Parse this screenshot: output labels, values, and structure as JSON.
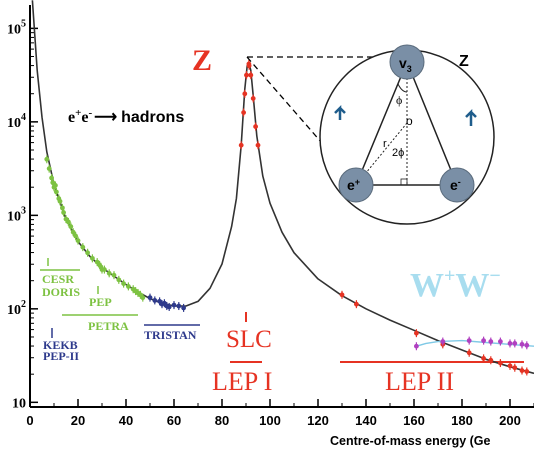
{
  "chart_data": {
    "type": "line",
    "xlabel": "Centre-of-mass energy (Ge",
    "x_ticks": [
      "0",
      "20",
      "40",
      "60",
      "80",
      "100",
      "120",
      "140",
      "160",
      "180",
      "200"
    ],
    "y_ticks": [
      "10",
      "10",
      "10",
      "10",
      "10"
    ],
    "y_tick_exponents": [
      "",
      "2",
      "3",
      "4",
      "5"
    ],
    "y_tick_values": [
      10,
      100,
      1000,
      10000,
      100000
    ],
    "xlim": [
      0,
      210
    ],
    "ylim_log10": [
      0.95,
      5.25
    ],
    "process_label": {
      "base1": "e",
      "sup1": "+",
      "base2": "e",
      "sup2": "-",
      "arrow": "⟶",
      "text": "hadrons"
    },
    "z_label": "Z",
    "ww_label": {
      "base1": "W",
      "sup1": "+",
      "base2": "W",
      "sup2": "−"
    },
    "theory_curve": {
      "color": "#333333",
      "points": [
        [
          1.0,
          5.3
        ],
        [
          3.0,
          4.55
        ],
        [
          5.0,
          4.05
        ],
        [
          7.0,
          3.68
        ],
        [
          10.0,
          3.33
        ],
        [
          15.0,
          2.96
        ],
        [
          20.0,
          2.72
        ],
        [
          25.0,
          2.56
        ],
        [
          30.0,
          2.44
        ],
        [
          35.0,
          2.35
        ],
        [
          40.0,
          2.26
        ],
        [
          45.0,
          2.18
        ],
        [
          50.0,
          2.11
        ],
        [
          55.0,
          2.06
        ],
        [
          60.0,
          2.03
        ],
        [
          65.0,
          2.03
        ],
        [
          70.0,
          2.08
        ],
        [
          75.0,
          2.22
        ],
        [
          80.0,
          2.48
        ],
        [
          84.0,
          2.88
        ],
        [
          86.0,
          3.18
        ],
        [
          88.0,
          3.75
        ],
        [
          89.5,
          4.35
        ],
        [
          90.5,
          4.6
        ],
        [
          91.2,
          4.63
        ],
        [
          92.0,
          4.55
        ],
        [
          93.0,
          4.28
        ],
        [
          94.5,
          3.85
        ],
        [
          97.0,
          3.42
        ],
        [
          100.0,
          3.13
        ],
        [
          105.0,
          2.82
        ],
        [
          110.0,
          2.6
        ],
        [
          120.0,
          2.32
        ],
        [
          130.0,
          2.14
        ],
        [
          140.0,
          2.0
        ],
        [
          150.0,
          1.88
        ],
        [
          160.0,
          1.77
        ],
        [
          170.0,
          1.66
        ],
        [
          180.0,
          1.56
        ],
        [
          190.0,
          1.46
        ],
        [
          200.0,
          1.38
        ],
        [
          210.0,
          1.31
        ]
      ]
    },
    "ww_curve": {
      "color": "#7FC9E6",
      "points": [
        [
          161.0,
          1.6
        ],
        [
          165.0,
          1.63
        ],
        [
          170.0,
          1.65
        ],
        [
          180.0,
          1.66
        ],
        [
          190.0,
          1.64
        ],
        [
          200.0,
          1.62
        ],
        [
          210.0,
          1.6
        ]
      ]
    },
    "series": [
      {
        "name": "CESR",
        "color": "#7DC242",
        "points": [
          [
            7.0,
            3.6
          ],
          [
            8.0,
            3.5
          ],
          [
            9.0,
            3.4
          ],
          [
            9.5,
            3.35
          ],
          [
            10.0,
            3.3
          ],
          [
            10.6,
            3.32
          ],
          [
            11.0,
            3.25
          ],
          [
            12.0,
            3.18
          ]
        ]
      },
      {
        "name": "DORIS",
        "color": "#7DC242",
        "points": [
          [
            12.5,
            3.15
          ],
          [
            13.5,
            3.08
          ],
          [
            14.0,
            3.03
          ],
          [
            15.0,
            2.96
          ],
          [
            16.0,
            2.93
          ],
          [
            17.0,
            2.88
          ],
          [
            18.0,
            2.82
          ]
        ]
      },
      {
        "name": "PEP",
        "color": "#7DC242",
        "points": [
          [
            29.0,
            2.47
          ],
          [
            29.5,
            2.45
          ],
          [
            30.0,
            2.42
          ]
        ]
      },
      {
        "name": "PETRA",
        "color": "#7DC242",
        "points": [
          [
            19.0,
            2.78
          ],
          [
            20.0,
            2.73
          ],
          [
            22.0,
            2.66
          ],
          [
            24.0,
            2.6
          ],
          [
            26.0,
            2.54
          ],
          [
            28.0,
            2.5
          ],
          [
            31.0,
            2.42
          ],
          [
            33.0,
            2.38
          ],
          [
            35.0,
            2.36
          ],
          [
            37.0,
            2.31
          ],
          [
            39.0,
            2.27
          ],
          [
            41.0,
            2.24
          ],
          [
            43.0,
            2.21
          ],
          [
            44.0,
            2.19
          ],
          [
            45.0,
            2.17
          ],
          [
            46.0,
            2.15
          ],
          [
            47.0,
            2.12
          ]
        ]
      },
      {
        "name": "TRISTAN",
        "color": "#2E3A8C",
        "points": [
          [
            50.0,
            2.12
          ],
          [
            52.0,
            2.09
          ],
          [
            54.0,
            2.08
          ],
          [
            55.0,
            2.05
          ],
          [
            56.0,
            2.06
          ],
          [
            57.0,
            2.03
          ],
          [
            58.0,
            2.02
          ],
          [
            60.0,
            2.04
          ],
          [
            62.0,
            2.03
          ],
          [
            64.0,
            2.01
          ]
        ]
      },
      {
        "name": "LEP I",
        "color": "#E63323",
        "points": [
          [
            88.0,
            3.75
          ],
          [
            89.0,
            4.1
          ],
          [
            89.5,
            4.3
          ],
          [
            90.2,
            4.5
          ],
          [
            91.2,
            4.62
          ],
          [
            92.0,
            4.5
          ],
          [
            93.0,
            4.25
          ],
          [
            94.0,
            3.95
          ],
          [
            95.0,
            3.75
          ]
        ]
      },
      {
        "name": "SLC",
        "color": "#E63323",
        "points": [
          [
            91.3,
            4.6
          ]
        ]
      },
      {
        "name": "LEP II",
        "color": "#E63323",
        "points": [
          [
            130.0,
            2.15
          ],
          [
            136.0,
            2.05
          ],
          [
            161.0,
            1.74
          ],
          [
            172.0,
            1.62
          ],
          [
            183.0,
            1.53
          ],
          [
            189.0,
            1.47
          ],
          [
            192.0,
            1.45
          ],
          [
            196.0,
            1.42
          ],
          [
            200.0,
            1.39
          ],
          [
            202.0,
            1.37
          ],
          [
            205.0,
            1.34
          ],
          [
            207.0,
            1.33
          ]
        ]
      },
      {
        "name": "W+W-",
        "color": "#B040C0",
        "points": [
          [
            161.0,
            1.6
          ],
          [
            172.0,
            1.65
          ],
          [
            183.0,
            1.66
          ],
          [
            189.0,
            1.66
          ],
          [
            192.0,
            1.65
          ],
          [
            196.0,
            1.65
          ],
          [
            200.0,
            1.63
          ],
          [
            202.0,
            1.63
          ],
          [
            205.0,
            1.62
          ],
          [
            207.0,
            1.61
          ]
        ]
      }
    ],
    "experiment_labels": [
      {
        "text": "CESR",
        "color": "#7DC242"
      },
      {
        "text": "DORIS",
        "color": "#7DC242"
      },
      {
        "text": "PEP",
        "color": "#7DC242"
      },
      {
        "text": "PETRA",
        "color": "#7DC242"
      },
      {
        "text": "TRISTAN",
        "color": "#2E3A8C"
      },
      {
        "text": "KEKB",
        "color": "#2E3A8C"
      },
      {
        "text": "PEP-II",
        "color": "#2E3A8C"
      },
      {
        "text": "SLC",
        "color": "#E63323"
      },
      {
        "text": "LEP I",
        "color": "#E63323"
      },
      {
        "text": "LEP II",
        "color": "#E63323"
      }
    ]
  },
  "diagram": {
    "top_node": "v",
    "top_node_sub": "3",
    "left_node": "e",
    "left_node_sup": "+",
    "right_node": "e",
    "right_node_sup": "-",
    "corner_label": "Z",
    "phi_label": "ϕ",
    "origin_label": "o",
    "radius_label": "r",
    "two_phi_label": "2ϕ"
  }
}
